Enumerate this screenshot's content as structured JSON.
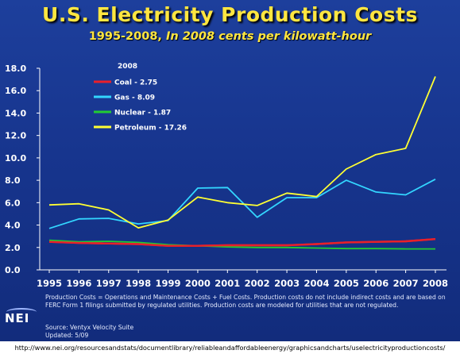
{
  "title": "U.S. Electricity Production Costs",
  "subtitle_main": "1995-2008, ",
  "subtitle_italic": "In 2008 cents per kilowatt-hour",
  "legend_title": "2008",
  "notes": "Production Costs = Operations and Maintenance Costs + Fuel Costs. Production costs do not include indirect costs and are based on FERC Form 1 filings submitted by regulated utilities. Production costs are modeled for utilities that are not regulated.",
  "source": "Source: Ventyx Velocity Suite",
  "updated": "Updated: 5/09",
  "logo_text": "NEI",
  "url": "http://www.nei.org/resourcesandstats/documentlibrary/reliableandaffordableenergy/graphicsandcharts/uselectricityproductioncosts/",
  "colors": {
    "background": "#17358e",
    "title": "#ffe640",
    "axis": "#ffffff"
  },
  "chart_data": {
    "type": "line",
    "title": "U.S. Electricity Production Costs",
    "subtitle": "1995-2008, In 2008 cents per kilowatt-hour",
    "xlabel": "",
    "ylabel": "",
    "ylim": [
      0,
      18
    ],
    "yticks": [
      "0.0",
      "2.0",
      "4.0",
      "6.0",
      "8.0",
      "10.0",
      "12.0",
      "14.0",
      "16.0",
      "18.0"
    ],
    "categories": [
      "1995",
      "1996",
      "1997",
      "1998",
      "1999",
      "2000",
      "2001",
      "2002",
      "2003",
      "2004",
      "2005",
      "2006",
      "2007",
      "2008"
    ],
    "grid": false,
    "legend_position": "top-left",
    "series": [
      {
        "name": "Coal - 2.75",
        "color": "#e8202a",
        "values": [
          2.5,
          2.4,
          2.35,
          2.3,
          2.15,
          2.15,
          2.2,
          2.2,
          2.2,
          2.3,
          2.45,
          2.5,
          2.55,
          2.75
        ]
      },
      {
        "name": "Gas - 8.09",
        "color": "#33d6ff",
        "values": [
          3.7,
          4.55,
          4.6,
          4.1,
          4.4,
          7.3,
          7.35,
          4.7,
          6.45,
          6.45,
          8.0,
          6.95,
          6.7,
          8.09
        ]
      },
      {
        "name": "Nuclear - 1.87",
        "color": "#22cc33",
        "values": [
          2.65,
          2.5,
          2.55,
          2.45,
          2.25,
          2.15,
          2.05,
          2.0,
          2.0,
          1.95,
          1.9,
          1.9,
          1.87,
          1.87
        ]
      },
      {
        "name": "Petroleum - 17.26",
        "color": "#ffff33",
        "values": [
          5.8,
          5.9,
          5.35,
          3.75,
          4.45,
          6.5,
          6.0,
          5.75,
          6.85,
          6.55,
          9.0,
          10.3,
          10.85,
          17.26
        ]
      }
    ]
  }
}
